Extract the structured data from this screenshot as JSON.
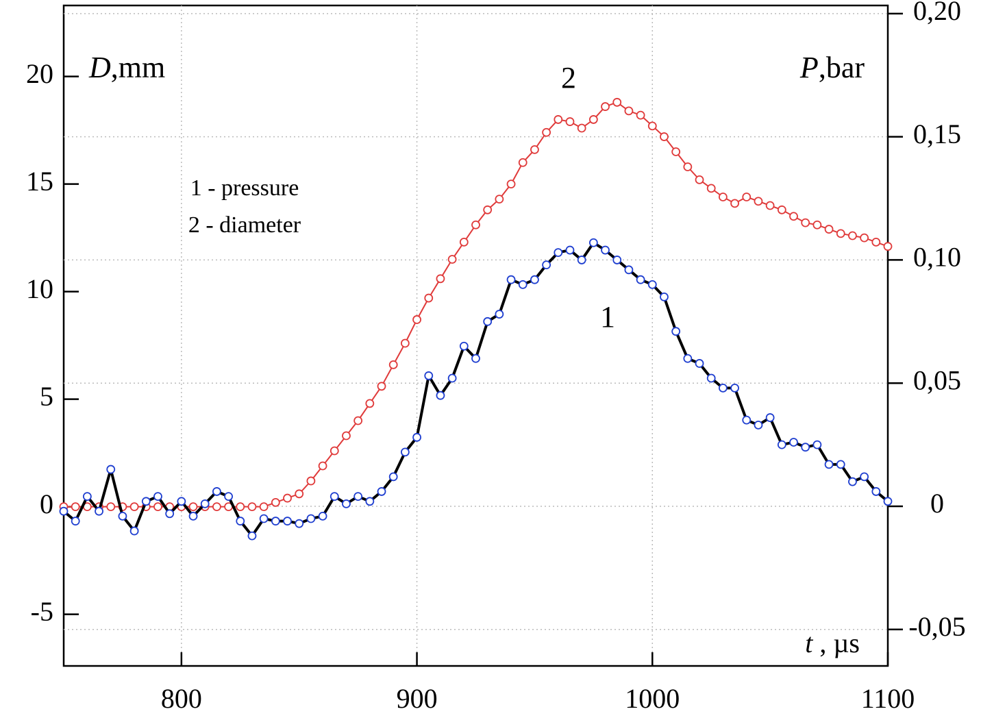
{
  "chart_data": {
    "type": "scatter",
    "x_label": {
      "symbol": "t",
      "unit": " , µs"
    },
    "y_label": {
      "symbol": "D",
      "unit": ",mm"
    },
    "y2_label": {
      "symbol": "P",
      "unit": ",bar"
    },
    "annotations": [
      "1 - pressure",
      "2 - diameter",
      "1",
      "2"
    ],
    "x": [
      750,
      755,
      760,
      765,
      770,
      775,
      780,
      785,
      790,
      795,
      800,
      805,
      810,
      815,
      820,
      825,
      830,
      835,
      840,
      845,
      850,
      855,
      860,
      865,
      870,
      875,
      880,
      885,
      890,
      895,
      900,
      905,
      910,
      915,
      920,
      925,
      930,
      935,
      940,
      945,
      950,
      955,
      960,
      965,
      970,
      975,
      980,
      985,
      990,
      995,
      1000,
      1005,
      1010,
      1015,
      1020,
      1025,
      1030,
      1035,
      1040,
      1045,
      1050,
      1055,
      1060,
      1065,
      1070,
      1075,
      1080,
      1085,
      1090,
      1095,
      1100
    ],
    "series": [
      {
        "name": "pressure",
        "axis": "y2",
        "color": "#000000",
        "marker_color": "#1f3fd0",
        "values": [
          -0.002,
          -0.006,
          0.004,
          -0.002,
          0.015,
          -0.004,
          -0.01,
          0.002,
          0.004,
          -0.003,
          0.002,
          -0.004,
          0.001,
          0.006,
          0.004,
          -0.006,
          -0.012,
          -0.005,
          -0.006,
          -0.006,
          -0.007,
          -0.005,
          -0.004,
          0.004,
          0.001,
          0.004,
          0.002,
          0.006,
          0.012,
          0.022,
          0.028,
          0.053,
          0.045,
          0.052,
          0.065,
          0.06,
          0.075,
          0.078,
          0.092,
          0.09,
          0.092,
          0.098,
          0.103,
          0.104,
          0.1,
          0.107,
          0.104,
          0.1,
          0.096,
          0.092,
          0.09,
          0.085,
          0.071,
          0.06,
          0.058,
          0.052,
          0.048,
          0.048,
          0.035,
          0.033,
          0.036,
          0.025,
          0.026,
          0.024,
          0.025,
          0.017,
          0.017,
          0.01,
          0.012,
          0.006,
          0.002
        ]
      },
      {
        "name": "diameter",
        "axis": "y",
        "color": "#e03a3a",
        "marker_color": "#e03a3a",
        "values": [
          0,
          0,
          0,
          0,
          0,
          0,
          0,
          0,
          0,
          0,
          0,
          0,
          0,
          0,
          0,
          0,
          0,
          0,
          0.2,
          0.4,
          0.6,
          1.2,
          1.9,
          2.6,
          3.3,
          4.0,
          4.8,
          5.6,
          6.6,
          7.6,
          8.7,
          9.7,
          10.6,
          11.5,
          12.3,
          13.1,
          13.8,
          14.3,
          15.0,
          16.0,
          16.6,
          17.4,
          18.0,
          17.9,
          17.6,
          18.0,
          18.6,
          18.8,
          18.4,
          18.2,
          17.7,
          17.2,
          16.5,
          15.8,
          15.2,
          14.8,
          14.4,
          14.1,
          14.4,
          14.2,
          14.0,
          13.8,
          13.5,
          13.2,
          13.1,
          12.9,
          12.7,
          12.6,
          12.5,
          12.3,
          12.1
        ]
      }
    ],
    "xlim": [
      750,
      1100
    ],
    "xticks": [
      800,
      900,
      1000,
      1100
    ],
    "ylim": [
      -7.4,
      23.3
    ],
    "yticks": [
      -5,
      0,
      5,
      10,
      15,
      20
    ],
    "y2lim": [
      -0.0648,
      0.2033
    ],
    "y2ticks": [
      {
        "value": -0.05,
        "label": "-0,05"
      },
      0,
      {
        "value": 0.05,
        "label": "0,05"
      },
      {
        "value": 0.1,
        "label": "0,10"
      },
      {
        "value": 0.15,
        "label": "0,15"
      },
      {
        "value": 0.2,
        "label": "0,20"
      }
    ],
    "grid": true
  }
}
